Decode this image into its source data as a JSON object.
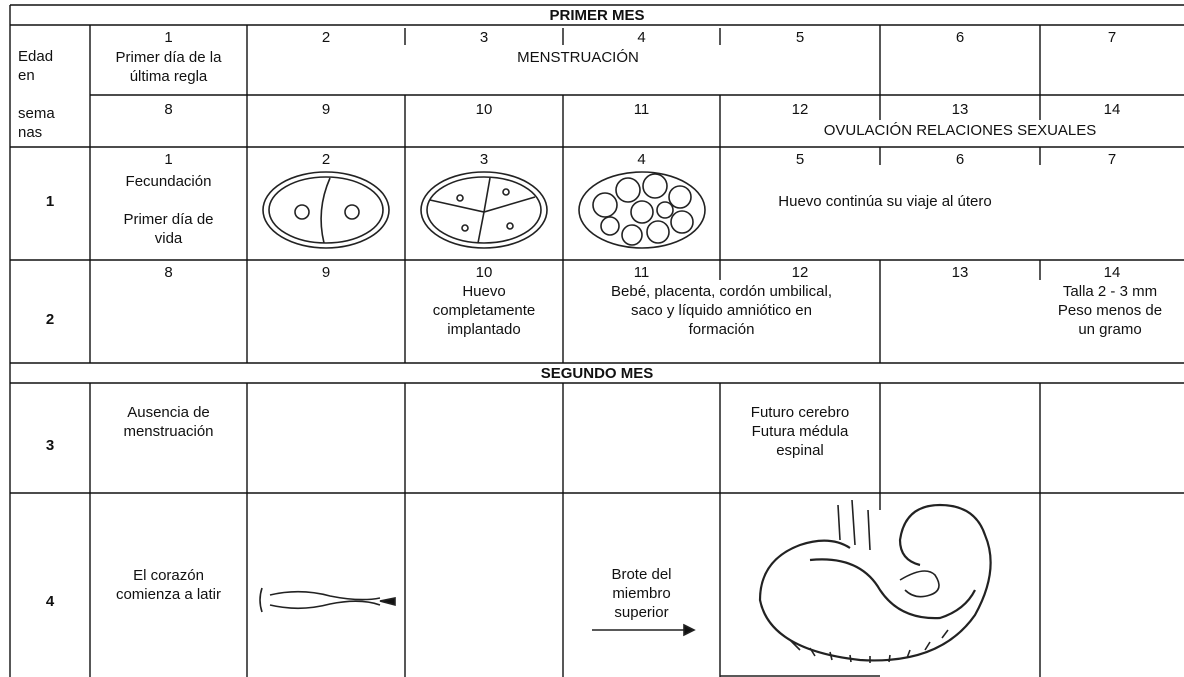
{
  "months": [
    "PRIMER MES",
    "SEGUNDO MES"
  ],
  "age_label": [
    "Edad\nen",
    "sema\nnas"
  ],
  "cycle": {
    "days_a": [
      1,
      2,
      3,
      4,
      5,
      6,
      7
    ],
    "days_b": [
      8,
      9,
      10,
      11,
      12,
      13,
      14
    ],
    "first_day": "Primer día de la\núltima regla",
    "menstruation": "MENSTRUACIÓN",
    "ovulation": "OVULACIÓN RELACIONES SEXUALES"
  },
  "weeks": [
    {
      "week": 1,
      "days": [
        1,
        2,
        3,
        4,
        5,
        6,
        7
      ],
      "notes": [
        "Fecundación\n\nPrimer día de\nvida",
        "Huevo continúa su viaje al útero"
      ]
    },
    {
      "week": 2,
      "days": [
        8,
        9,
        10,
        11,
        12,
        13,
        14
      ],
      "notes": [
        "Huevo\ncompletamente\nimplantado",
        "Bebé, placenta, cordón umbilical,\nsaco y líquido amniótico en\nformación",
        "Talla 2 - 3 mm\nPeso menos de\nun gramo"
      ]
    },
    {
      "week": 3,
      "notes": [
        "Ausencia de\nmenstruación",
        "Futuro cerebro\nFutura médula\nespinal"
      ]
    },
    {
      "week": 4,
      "notes": [
        "El corazón\ncomienza a latir",
        "Brote del\nmiembro\nsuperior"
      ]
    }
  ]
}
